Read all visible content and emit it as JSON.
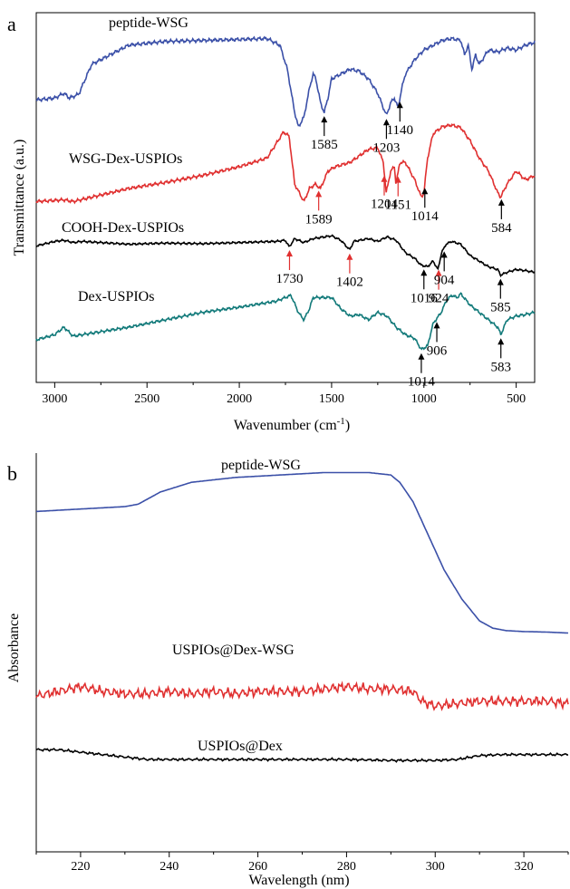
{
  "panel_a": {
    "letter": "a",
    "ylabel": "Transmittance (a.u.)",
    "xlabel_main": "Wavenumber (cm",
    "xlabel_sup": "-1",
    "xlabel_end": ")",
    "x_ticks": [
      "3000",
      "2500",
      "2000",
      "1500",
      "1000",
      "500"
    ]
  },
  "panel_b": {
    "letter": "b",
    "ylabel": "Absorbance",
    "xlabel": "Wavelength (nm)",
    "x_ticks": [
      "220",
      "240",
      "260",
      "280",
      "300",
      "320"
    ]
  },
  "chart_data": [
    {
      "type": "line",
      "panel": "a",
      "xlabel": "Wavenumber (cm-1)",
      "ylabel": "Transmittance (a.u.)",
      "xlim": [
        3100,
        400
      ],
      "x_reversed": true,
      "grid": false,
      "series": [
        {
          "name": "peptide-WSG",
          "color": "#3b50a8",
          "x": [
            3100,
            3000,
            2950,
            2920,
            2870,
            2800,
            2600,
            2400,
            2200,
            2000,
            1850,
            1780,
            1740,
            1700,
            1680,
            1650,
            1620,
            1600,
            1585,
            1560,
            1540,
            1520,
            1500,
            1450,
            1400,
            1350,
            1300,
            1250,
            1220,
            1203,
            1180,
            1160,
            1140,
            1120,
            1100,
            1050,
            1000,
            950,
            900,
            850,
            800,
            780,
            760,
            740,
            720,
            700,
            650,
            600,
            550,
            500,
            450,
            400
          ],
          "y": [
            0.28,
            0.3,
            0.35,
            0.3,
            0.34,
            0.65,
            0.85,
            0.89,
            0.9,
            0.91,
            0.92,
            0.85,
            0.6,
            0.15,
            0.0,
            0.1,
            0.4,
            0.55,
            0.5,
            0.25,
            0.15,
            0.3,
            0.5,
            0.55,
            0.6,
            0.58,
            0.5,
            0.35,
            0.2,
            0.12,
            0.25,
            0.3,
            0.2,
            0.4,
            0.55,
            0.7,
            0.8,
            0.85,
            0.9,
            0.92,
            0.9,
            0.75,
            0.85,
            0.6,
            0.75,
            0.65,
            0.8,
            0.78,
            0.82,
            0.8,
            0.85,
            0.88
          ]
        },
        {
          "name": "WSG-Dex-USPIOs",
          "color": "#e03030",
          "x": [
            3100,
            2950,
            2900,
            2800,
            2600,
            2400,
            2200,
            2000,
            1850,
            1760,
            1730,
            1700,
            1650,
            1620,
            1589,
            1560,
            1520,
            1480,
            1400,
            1300,
            1250,
            1220,
            1204,
            1180,
            1160,
            1151,
            1130,
            1100,
            1050,
            1014,
            1000,
            980,
            950,
            900,
            850,
            800,
            750,
            700,
            650,
            600,
            584,
            550,
            500,
            450,
            400
          ],
          "y": [
            0.1,
            0.12,
            0.1,
            0.15,
            0.25,
            0.32,
            0.4,
            0.5,
            0.6,
            0.9,
            0.85,
            0.3,
            0.1,
            0.25,
            0.3,
            0.25,
            0.45,
            0.5,
            0.55,
            0.7,
            0.72,
            0.55,
            0.2,
            0.45,
            0.5,
            0.3,
            0.55,
            0.55,
            0.35,
            0.15,
            0.2,
            0.6,
            0.88,
            0.96,
            0.98,
            0.95,
            0.8,
            0.6,
            0.45,
            0.2,
            0.15,
            0.3,
            0.45,
            0.35,
            0.4
          ]
        },
        {
          "name": "COOH-Dex-USPIOs",
          "color": "#000000",
          "x": [
            3100,
            3000,
            2950,
            2900,
            2850,
            2600,
            2400,
            2200,
            2000,
            1800,
            1750,
            1730,
            1700,
            1650,
            1600,
            1500,
            1450,
            1402,
            1380,
            1300,
            1250,
            1200,
            1150,
            1100,
            1050,
            1016,
            980,
            950,
            924,
            904,
            880,
            850,
            800,
            750,
            700,
            650,
            600,
            585,
            550,
            500,
            450,
            400
          ],
          "y": [
            0.72,
            0.8,
            0.82,
            0.78,
            0.8,
            0.75,
            0.77,
            0.76,
            0.78,
            0.8,
            0.82,
            0.7,
            0.85,
            0.78,
            0.85,
            0.9,
            0.82,
            0.65,
            0.8,
            0.85,
            0.8,
            0.88,
            0.82,
            0.6,
            0.5,
            0.38,
            0.35,
            0.45,
            0.3,
            0.6,
            0.75,
            0.8,
            0.75,
            0.55,
            0.45,
            0.35,
            0.3,
            0.2,
            0.25,
            0.3,
            0.28,
            0.25
          ]
        },
        {
          "name": "Dex-USPIOs",
          "color": "#127a7a",
          "x": [
            3100,
            3000,
            2950,
            2900,
            2850,
            2600,
            2400,
            2200,
            2000,
            1800,
            1720,
            1680,
            1650,
            1620,
            1600,
            1500,
            1450,
            1400,
            1350,
            1300,
            1250,
            1200,
            1150,
            1100,
            1050,
            1014,
            980,
            950,
            906,
            880,
            850,
            820,
            800,
            750,
            700,
            650,
            600,
            583,
            550,
            500,
            450,
            400
          ],
          "y": [
            0.28,
            0.35,
            0.45,
            0.33,
            0.35,
            0.45,
            0.55,
            0.65,
            0.72,
            0.8,
            0.88,
            0.65,
            0.55,
            0.7,
            0.85,
            0.85,
            0.7,
            0.6,
            0.62,
            0.55,
            0.65,
            0.6,
            0.45,
            0.35,
            0.3,
            0.15,
            0.2,
            0.5,
            0.65,
            0.8,
            0.88,
            0.85,
            0.9,
            0.75,
            0.65,
            0.55,
            0.45,
            0.35,
            0.55,
            0.6,
            0.62,
            0.65
          ]
        }
      ],
      "annotations": [
        {
          "text": "1585",
          "x": 1540,
          "series": "peptide-WSG",
          "color": "#000000"
        },
        {
          "text": "1203",
          "x": 1203,
          "series": "peptide-WSG",
          "color": "#000000"
        },
        {
          "text": "1140",
          "x": 1130,
          "series": "peptide-WSG",
          "color": "#000000"
        },
        {
          "text": "1589",
          "x": 1570,
          "series": "WSG-Dex-USPIOs",
          "color": "#e03030"
        },
        {
          "text": "1204",
          "x": 1215,
          "series": "WSG-Dex-USPIOs",
          "color": "#e03030"
        },
        {
          "text": "1151",
          "x": 1140,
          "series": "WSG-Dex-USPIOs",
          "color": "#e03030"
        },
        {
          "text": "1014",
          "x": 995,
          "series": "WSG-Dex-USPIOs",
          "color": "#000000"
        },
        {
          "text": "584",
          "x": 580,
          "series": "WSG-Dex-USPIOs",
          "color": "#000000"
        },
        {
          "text": "1730",
          "x": 1728,
          "series": "COOH-Dex-USPIOs",
          "color": "#e03030"
        },
        {
          "text": "1402",
          "x": 1402,
          "series": "COOH-Dex-USPIOs",
          "color": "#e03030"
        },
        {
          "text": "1016",
          "x": 1000,
          "series": "COOH-Dex-USPIOs",
          "color": "#000000"
        },
        {
          "text": "924",
          "x": 920,
          "series": "COOH-Dex-USPIOs",
          "color": "#e03030"
        },
        {
          "text": "904",
          "x": 890,
          "series": "COOH-Dex-USPIOs",
          "color": "#000000"
        },
        {
          "text": "585",
          "x": 585,
          "series": "COOH-Dex-USPIOs",
          "color": "#000000"
        },
        {
          "text": "1014",
          "x": 1014,
          "series": "Dex-USPIOs",
          "color": "#000000"
        },
        {
          "text": "906",
          "x": 930,
          "series": "Dex-USPIOs",
          "color": "#000000"
        },
        {
          "text": "583",
          "x": 583,
          "series": "Dex-USPIOs",
          "color": "#000000"
        }
      ]
    },
    {
      "type": "line",
      "panel": "b",
      "xlabel": "Wavelength (nm)",
      "ylabel": "Absorbance",
      "xlim": [
        210,
        330
      ],
      "grid": false,
      "series": [
        {
          "name": "peptide-WSG",
          "color": "#3b50a8",
          "x": [
            210,
            220,
            230,
            233,
            238,
            245,
            255,
            265,
            275,
            285,
            290,
            292,
            295,
            298,
            302,
            306,
            310,
            313,
            316,
            320,
            325,
            330
          ],
          "y": [
            0.8,
            0.805,
            0.81,
            0.815,
            0.84,
            0.86,
            0.87,
            0.875,
            0.88,
            0.88,
            0.875,
            0.86,
            0.82,
            0.76,
            0.68,
            0.62,
            0.575,
            0.56,
            0.555,
            0.553,
            0.552,
            0.55
          ],
          "noise": 0
        },
        {
          "name": "USPIOs@Dex-WSG",
          "color": "#e03030",
          "x": [
            210,
            215,
            220,
            225,
            230,
            235,
            240,
            245,
            250,
            255,
            260,
            265,
            270,
            275,
            280,
            285,
            290,
            295,
            297,
            300,
            305,
            310,
            315,
            320,
            325,
            330
          ],
          "y": [
            0.42,
            0.43,
            0.44,
            0.43,
            0.425,
            0.425,
            0.43,
            0.425,
            0.43,
            0.425,
            0.43,
            0.43,
            0.43,
            0.435,
            0.44,
            0.435,
            0.435,
            0.43,
            0.41,
            0.4,
            0.405,
            0.41,
            0.41,
            0.41,
            0.41,
            0.405
          ],
          "noise": 0.006
        },
        {
          "name": "USPIOs@Dex",
          "color": "#000000",
          "x": [
            210,
            215,
            220,
            225,
            230,
            235,
            240,
            250,
            260,
            270,
            280,
            290,
            300,
            305,
            310,
            315,
            320,
            325,
            330
          ],
          "y": [
            0.31,
            0.31,
            0.305,
            0.3,
            0.295,
            0.29,
            0.29,
            0.29,
            0.29,
            0.29,
            0.29,
            0.288,
            0.288,
            0.29,
            0.298,
            0.3,
            0.3,
            0.3,
            0.3
          ],
          "noise": 0.0015
        }
      ]
    }
  ]
}
